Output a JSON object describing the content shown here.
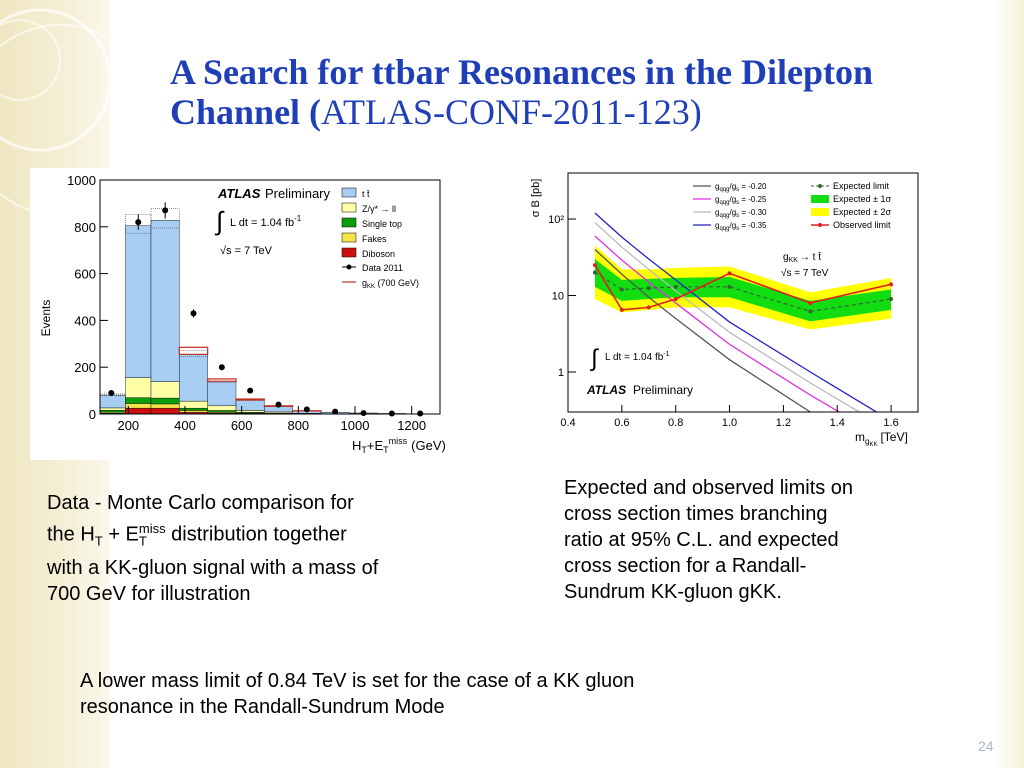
{
  "slide": {
    "title_line1": "A Search for ttbar Resonances in the Dilepton",
    "title_line2_bold": "Channel (",
    "title_line2_normal": "ATLAS-CONF-2011-123)",
    "page_number": "24",
    "caption_left_1": "Data - Monte Carlo comparison for",
    "caption_left_2a": "the H",
    "caption_left_2sub1": "T",
    "caption_left_2b": " + E",
    "caption_left_2sub2": "T",
    "caption_left_2sup": "miss",
    "caption_left_2c": " distribution together",
    "caption_left_3": "with a KK-gluon signal with a mass of",
    "caption_left_4": "700 GeV for illustration",
    "caption_right_1": "Expected and observed limits on",
    "caption_right_2": "cross section times branching",
    "caption_right_3": "ratio at 95% C.L. and expected",
    "caption_right_4": "cross section for a Randall-",
    "caption_right_5": "Sundrum KK-gluon gKK.",
    "conclusion_1": "A lower mass limit of 0.84 TeV is set for the case of a KK gluon",
    "conclusion_2": "resonance in the Randall-Sundrum Mode"
  },
  "chart_data": [
    {
      "type": "bar",
      "ylabel": "Events",
      "xlabel_main": "H",
      "xlabel_sub1": "T",
      "xlabel_mid": "+E",
      "xlabel_sub2": "T",
      "xlabel_sup": "miss",
      "xlabel_unit": "(GeV)",
      "xlim": [
        100,
        1300
      ],
      "ylim": [
        0,
        1000
      ],
      "xticks": [
        200,
        400,
        600,
        800,
        1000,
        1200
      ],
      "yticks": [
        0,
        200,
        400,
        600,
        800,
        1000
      ],
      "bin_edges": [
        100,
        190,
        280,
        380,
        480,
        580,
        680,
        780,
        880,
        980,
        1080,
        1180,
        1280
      ],
      "stack": [
        {
          "name": "t t̄",
          "color": "#a8cdf2",
          "values": [
            55,
            650,
            690,
            200,
            105,
            45,
            24,
            10,
            6,
            3,
            2,
            1
          ]
        },
        {
          "name": "Z/γ* → ll",
          "color": "#ffffa6",
          "values": [
            10,
            85,
            70,
            30,
            20,
            8,
            5,
            2,
            1,
            1,
            0,
            0
          ]
        },
        {
          "name": "Single top",
          "color": "#0a9d0a",
          "values": [
            8,
            25,
            25,
            10,
            7,
            3,
            2,
            1,
            0,
            0,
            0,
            0
          ]
        },
        {
          "name": "Fakes",
          "color": "#f5e34a",
          "values": [
            5,
            20,
            18,
            8,
            4,
            2,
            1,
            0,
            0,
            0,
            0,
            0
          ]
        },
        {
          "name": "Diboson",
          "color": "#cc1010",
          "values": [
            3,
            25,
            25,
            7,
            4,
            2,
            1,
            0,
            0,
            0,
            0,
            0
          ]
        }
      ],
      "signal": {
        "name": "g",
        "name_sub": "KK",
        "name_suffix": " (700 GeV)",
        "color": "#c03020",
        "values": [
          0,
          0,
          0,
          30,
          10,
          4,
          2,
          1,
          0,
          0,
          0,
          0
        ]
      },
      "data": {
        "name": "Data 2011",
        "x": [
          140,
          235,
          330,
          430,
          530,
          630,
          730,
          830,
          930,
          1030,
          1130,
          1230
        ],
        "y": [
          90,
          820,
          870,
          430,
          200,
          100,
          40,
          20,
          10,
          4,
          2,
          2
        ]
      },
      "annotations": {
        "atlas": "ATLAS",
        "prelim": "Preliminary",
        "lumi_int": "∫",
        "lumi": "L dt =  1.04  fb",
        "lumi_sup": "-1",
        "energy": "√s = 7 TeV"
      }
    },
    {
      "type": "line",
      "yscale": "log",
      "ylabel": "σ B [pb]",
      "xlabel_main": "m",
      "xlabel_sub": "g",
      "xlabel_subsub": "KK",
      "xlabel_unit": "[TeV]",
      "xlim": [
        0.4,
        1.7
      ],
      "ylim": [
        0.3,
        400
      ],
      "xticks": [
        0.4,
        0.6,
        0.8,
        1.0,
        1.2,
        1.4,
        1.6
      ],
      "xticklabels": [
        "0.4",
        "0.6",
        "0.8",
        "1.0",
        "1.2",
        "1.4",
        "1.6"
      ],
      "yticks": [
        1,
        10,
        100
      ],
      "yticklabels": [
        "1",
        "10",
        "10²"
      ],
      "expected": {
        "name": "Expected limit",
        "x": [
          0.5,
          0.6,
          0.7,
          0.8,
          1.0,
          1.3,
          1.6
        ],
        "y": [
          20,
          12,
          12.5,
          13,
          13,
          6.2,
          9
        ]
      },
      "band1": {
        "name": "Expected ± 1σ",
        "color": "#11dd11",
        "lo": [
          13,
          8.5,
          9,
          9.5,
          9.5,
          4.6,
          6.5
        ],
        "hi": [
          30,
          16,
          16.5,
          17,
          17.5,
          8.5,
          12
        ]
      },
      "band2": {
        "name": "Expected ± 2σ",
        "color": "#ffff00",
        "lo": [
          9,
          6,
          6.5,
          7,
          7,
          3.6,
          5
        ],
        "hi": [
          45,
          22,
          22,
          23,
          24,
          11,
          17
        ]
      },
      "observed": {
        "name": "Observed limit",
        "color": "#e02020",
        "x": [
          0.5,
          0.6,
          0.7,
          0.8,
          1.0,
          1.3,
          1.6
        ],
        "y": [
          25,
          6.5,
          7,
          9,
          19.5,
          8,
          14
        ]
      },
      "theory": [
        {
          "name_a": "g",
          "name_b": "qqg",
          "name_c": "/g",
          "name_d": "s",
          "name_e": " = -0.20",
          "color": "#555555",
          "y": [
            40,
            19,
            9.5,
            5,
            1.45,
            0.3,
            0.07
          ]
        },
        {
          "name_a": "g",
          "name_b": "qqg",
          "name_c": "/g",
          "name_d": "s",
          "name_e": " = -0.25",
          "color": "#e030e0",
          "y": [
            60,
            29,
            15,
            8,
            2.3,
            0.5,
            0.12
          ]
        },
        {
          "name_a": "g",
          "name_b": "qqg",
          "name_c": "/g",
          "name_d": "s",
          "name_e": " = -0.30",
          "color": "#bbbbbb",
          "y": [
            90,
            43,
            22,
            11.5,
            3.3,
            0.72,
            0.17
          ]
        },
        {
          "name_a": "g",
          "name_b": "qqg",
          "name_c": "/g",
          "name_d": "s",
          "name_e": " = -0.35",
          "color": "#2222cc",
          "y": [
            120,
            58,
            30,
            16,
            4.5,
            1.0,
            0.23
          ]
        }
      ],
      "theory_x": [
        0.5,
        0.6,
        0.7,
        0.8,
        1.0,
        1.3,
        1.6
      ],
      "annotations": {
        "process_a": "g",
        "process_b": "KK",
        "process_c": "→ t t̄",
        "energy": "√s = 7 TeV",
        "lumi_int": "∫",
        "lumi": "L dt = 1.04 fb",
        "lumi_sup": "-1",
        "atlas": "ATLAS",
        "prelim": "Preliminary"
      }
    }
  ]
}
